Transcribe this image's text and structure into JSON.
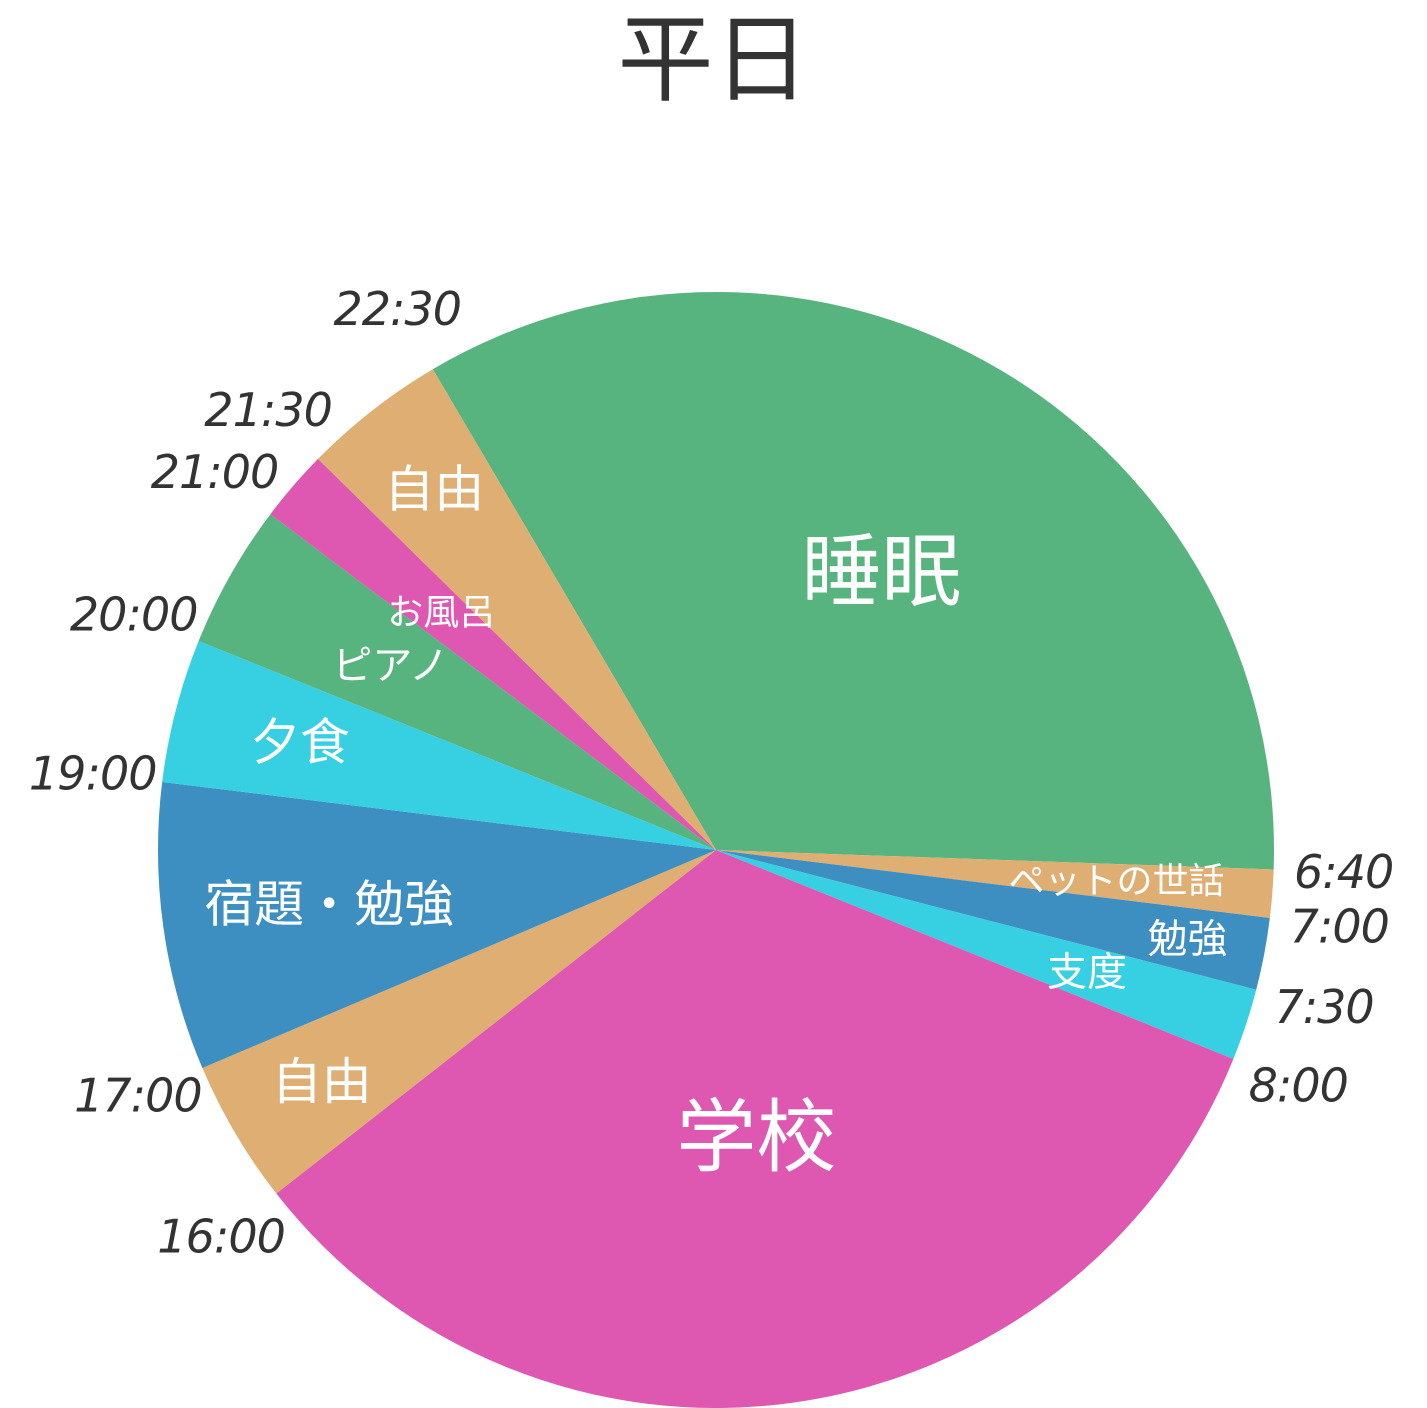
{
  "chart_data": {
    "type": "pie",
    "title": "平日",
    "start_time_at_top": "",
    "slices": [
      {
        "label": "睡眠",
        "start": "22:30",
        "end": "6:40",
        "color": "#58B47F"
      },
      {
        "label": "ペットの世話",
        "start": "6:40",
        "end": "7:00",
        "color": "#DFAE73"
      },
      {
        "label": "勉強",
        "start": "7:00",
        "end": "7:30",
        "color": "#3C8FC0"
      },
      {
        "label": "支度",
        "start": "7:30",
        "end": "8:00",
        "color": "#37D0E2"
      },
      {
        "label": "学校",
        "start": "8:00",
        "end": "16:00",
        "color": "#DE57B0"
      },
      {
        "label": "自由",
        "start": "16:00",
        "end": "17:00",
        "color": "#DFAE73"
      },
      {
        "label": "宿題・勉強",
        "start": "17:00",
        "end": "19:00",
        "color": "#3C8FC0"
      },
      {
        "label": "夕食",
        "start": "19:00",
        "end": "20:00",
        "color": "#37D0E2"
      },
      {
        "label": "ピアノ",
        "start": "20:00",
        "end": "21:00",
        "color": "#58B47F"
      },
      {
        "label": "お風呂",
        "start": "21:00",
        "end": "21:30",
        "color": "#DE57B0"
      },
      {
        "label": "自由",
        "start": "21:30",
        "end": "22:30",
        "color": "#DFAE73"
      }
    ],
    "time_labels": [
      "6:40",
      "7:00",
      "7:30",
      "8:00",
      "16:00",
      "17:00",
      "19:00",
      "20:00",
      "21:00",
      "21:30",
      "22:30"
    ]
  }
}
